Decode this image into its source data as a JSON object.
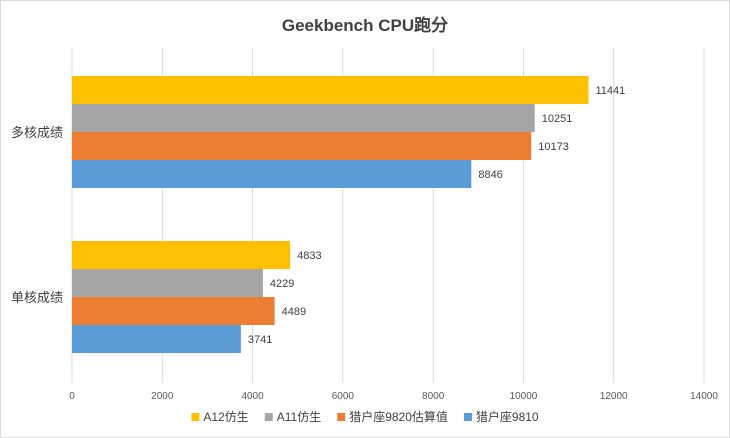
{
  "chart_data": {
    "type": "bar",
    "orientation": "horizontal",
    "title": "Geekbench CPU跑分",
    "categories": [
      "多核成绩",
      "单核成绩"
    ],
    "series": [
      {
        "name": "A12仿生",
        "color": "#FFC000",
        "values": [
          11441,
          4833
        ]
      },
      {
        "name": "A11仿生",
        "color": "#A5A5A5",
        "values": [
          10251,
          4229
        ]
      },
      {
        "name": "猎户座9820估算值",
        "color": "#ED7D31",
        "values": [
          10173,
          4489
        ]
      },
      {
        "name": "猎户座9810",
        "color": "#5B9BD5",
        "values": [
          8846,
          3741
        ]
      }
    ],
    "xlim": [
      0,
      14000
    ],
    "xticks": [
      0,
      2000,
      4000,
      6000,
      8000,
      10000,
      12000,
      14000
    ],
    "grid": true,
    "data_labels": true,
    "legend_position": "bottom"
  }
}
